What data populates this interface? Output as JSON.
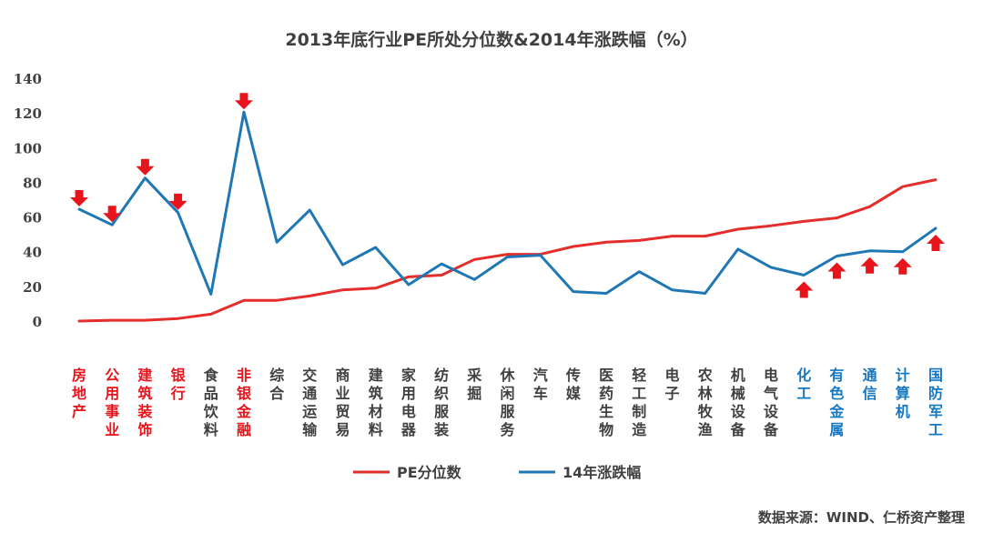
{
  "chart_data": {
    "type": "line",
    "title": "2013年底行业PE所处分位数&2014年涨跌幅（%）",
    "ylim": [
      0,
      140
    ],
    "yticks": [
      0,
      20,
      40,
      60,
      80,
      100,
      120,
      140
    ],
    "grid": false,
    "legend_position": "bottom",
    "categories": [
      "房地产",
      "公用事业",
      "建筑装饰",
      "银行",
      "食品饮料",
      "非银金融",
      "综合",
      "交通运输",
      "商业贸易",
      "建筑材料",
      "家用电器",
      "纺织服装",
      "采掘",
      "休闲服务",
      "汽车",
      "传媒",
      "医药生物",
      "轻工制造",
      "电子",
      "农林牧渔",
      "机械设备",
      "电气设备",
      "化工",
      "有色金属",
      "通信",
      "计算机",
      "国防军工"
    ],
    "category_colors": [
      "#e8141b",
      "#e8141b",
      "#e8141b",
      "#e8141b",
      "#404040",
      "#e8141b",
      "#404040",
      "#404040",
      "#404040",
      "#404040",
      "#404040",
      "#404040",
      "#404040",
      "#404040",
      "#404040",
      "#404040",
      "#404040",
      "#404040",
      "#404040",
      "#404040",
      "#404040",
      "#404040",
      "#1677c1",
      "#1677c1",
      "#1677c1",
      "#1677c1",
      "#1677c1"
    ],
    "series": [
      {
        "name": "PE分位数",
        "color": "#e32e2b",
        "values": [
          0.5,
          1,
          1,
          2,
          4.5,
          12.5,
          12.5,
          15,
          18.5,
          19.5,
          26,
          27,
          36,
          39,
          39,
          43.5,
          46,
          47,
          49.5,
          49.5,
          53.5,
          55.5,
          58,
          60,
          66.5,
          78,
          82
        ]
      },
      {
        "name": "14年涨跌幅",
        "color": "#1f78b4",
        "values": [
          65,
          56,
          83,
          63,
          16,
          121,
          46,
          64.5,
          33,
          43,
          21.5,
          33.5,
          24.5,
          37.5,
          38.5,
          17.5,
          16.5,
          29,
          18.5,
          16.5,
          42,
          31.5,
          27,
          38,
          41,
          40.5,
          54
        ]
      }
    ],
    "annotations": [
      {
        "type": "arrow-down",
        "color": "#e8141b",
        "categories": [
          "房地产",
          "公用事业",
          "建筑装饰",
          "银行",
          "非银金融"
        ]
      },
      {
        "type": "arrow-up",
        "color": "#e8141b",
        "categories": [
          "化工",
          "有色金属",
          "通信",
          "计算机",
          "国防军工"
        ]
      }
    ]
  },
  "source": "数据来源：WIND、仁桥资产整理"
}
